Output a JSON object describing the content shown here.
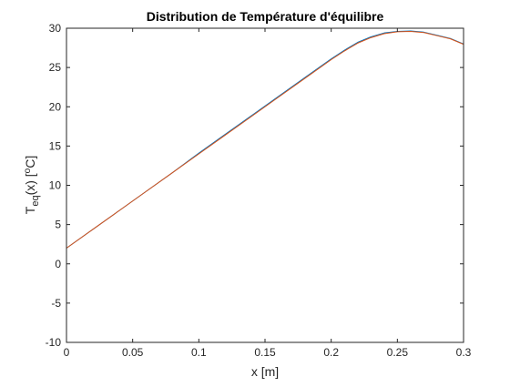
{
  "chart_data": {
    "type": "line",
    "title": "Distribution de Température d'équilibre",
    "xlabel": "x [m]",
    "ylabel": {
      "base": "T",
      "subscript": "eq",
      "rest": "(x) [",
      "superscript": "o",
      "unit": "C]"
    },
    "xlim": [
      0,
      0.3
    ],
    "ylim": [
      -10,
      30
    ],
    "xticks": [
      {
        "value": 0,
        "label": "0"
      },
      {
        "value": 0.05,
        "label": "0.05"
      },
      {
        "value": 0.1,
        "label": "0.1"
      },
      {
        "value": 0.15,
        "label": "0.15"
      },
      {
        "value": 0.2,
        "label": "0.2"
      },
      {
        "value": 0.25,
        "label": "0.25"
      },
      {
        "value": 0.3,
        "label": "0.3"
      }
    ],
    "yticks": [
      {
        "value": -10,
        "label": "-10"
      },
      {
        "value": -5,
        "label": "-5"
      },
      {
        "value": 0,
        "label": "0"
      },
      {
        "value": 5,
        "label": "5"
      },
      {
        "value": 10,
        "label": "10"
      },
      {
        "value": 15,
        "label": "15"
      },
      {
        "value": 20,
        "label": "20"
      },
      {
        "value": 25,
        "label": "25"
      },
      {
        "value": 30,
        "label": "30"
      }
    ],
    "grid": false,
    "legend": "none",
    "series": [
      {
        "color": "#0072BD",
        "x": [
          0,
          0.02,
          0.04,
          0.06,
          0.08,
          0.1,
          0.12,
          0.14,
          0.16,
          0.18,
          0.2,
          0.21,
          0.22,
          0.23,
          0.24,
          0.25,
          0.26,
          0.27,
          0.28,
          0.29,
          0.3
        ],
        "y": [
          2.0,
          4.4,
          6.8,
          9.2,
          11.6,
          14.1,
          16.5,
          18.9,
          21.3,
          23.7,
          26.1,
          27.2,
          28.2,
          28.9,
          29.4,
          29.6,
          29.65,
          29.5,
          29.1,
          28.7,
          28.0
        ]
      },
      {
        "color": "#D95319",
        "x": [
          0,
          0.02,
          0.04,
          0.06,
          0.08,
          0.1,
          0.12,
          0.14,
          0.16,
          0.18,
          0.2,
          0.21,
          0.22,
          0.23,
          0.24,
          0.25,
          0.26,
          0.27,
          0.28,
          0.29,
          0.3
        ],
        "y": [
          2.0,
          4.4,
          6.8,
          9.2,
          11.6,
          14.0,
          16.4,
          18.8,
          21.2,
          23.6,
          26.0,
          27.1,
          28.1,
          28.8,
          29.3,
          29.55,
          29.6,
          29.45,
          29.05,
          28.65,
          27.95
        ]
      }
    ]
  }
}
